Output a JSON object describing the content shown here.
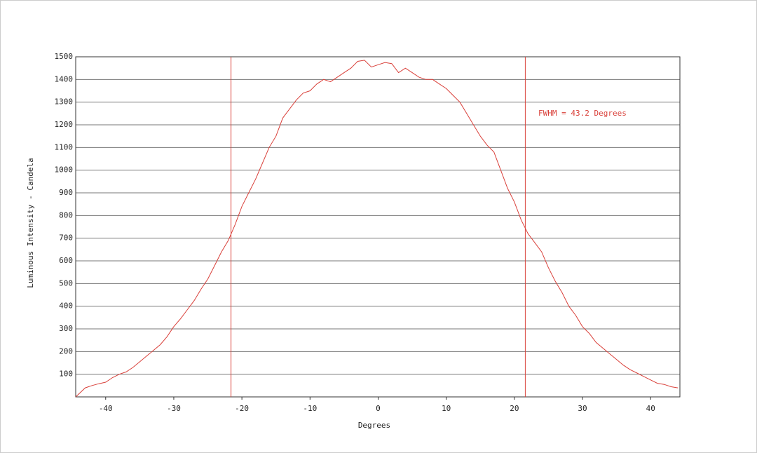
{
  "chart_data": {
    "type": "line",
    "xlabel": "Degrees",
    "ylabel": "Luminous Intensity - Candela",
    "annotation": "FWHM = 43.2 Degrees",
    "color": "#d9403a",
    "x": [
      -44.4,
      -43,
      -42,
      -41,
      -40,
      -39,
      -38,
      -37,
      -36,
      -35,
      -34,
      -33,
      -32,
      -31,
      -30,
      -29,
      -28,
      -27,
      -26,
      -25,
      -24,
      -23,
      -22,
      -21,
      -20,
      -19,
      -18,
      -17,
      -16,
      -15,
      -14,
      -13,
      -12,
      -11,
      -10,
      -9,
      -8,
      -7,
      -6,
      -5,
      -4,
      -3,
      -2,
      -1,
      0,
      1,
      2,
      3,
      4,
      5,
      6,
      7,
      8,
      9,
      10,
      11,
      12,
      13,
      14,
      15,
      16,
      17,
      18,
      19,
      20,
      21,
      22,
      23,
      24,
      25,
      26,
      27,
      28,
      29,
      30,
      31,
      32,
      33,
      34,
      35,
      36,
      37,
      38,
      39,
      40,
      41,
      42,
      43,
      44
    ],
    "values": [
      0,
      40,
      50,
      58,
      65,
      85,
      100,
      110,
      130,
      155,
      180,
      205,
      230,
      265,
      310,
      345,
      385,
      425,
      475,
      520,
      580,
      640,
      690,
      760,
      840,
      900,
      960,
      1030,
      1100,
      1150,
      1230,
      1270,
      1310,
      1340,
      1350,
      1380,
      1400,
      1390,
      1410,
      1430,
      1450,
      1480,
      1485,
      1455,
      1465,
      1475,
      1470,
      1430,
      1450,
      1430,
      1410,
      1400,
      1400,
      1380,
      1360,
      1330,
      1300,
      1250,
      1200,
      1150,
      1110,
      1080,
      1000,
      920,
      860,
      780,
      720,
      680,
      640,
      570,
      510,
      460,
      400,
      360,
      310,
      280,
      240,
      215,
      190,
      165,
      140,
      120,
      105,
      90,
      75,
      60,
      55,
      45,
      40
    ],
    "vlines": [
      -21.6,
      21.6
    ],
    "xlim": [
      -44.4,
      44.3
    ],
    "ylim": [
      0,
      1500
    ],
    "xticks": [
      -40,
      -30,
      -20,
      -10,
      0,
      10,
      20,
      30,
      40
    ],
    "yticks": [
      100,
      200,
      300,
      400,
      500,
      600,
      700,
      800,
      900,
      1000,
      1100,
      1200,
      1300,
      1400,
      1500
    ],
    "grid": true
  }
}
